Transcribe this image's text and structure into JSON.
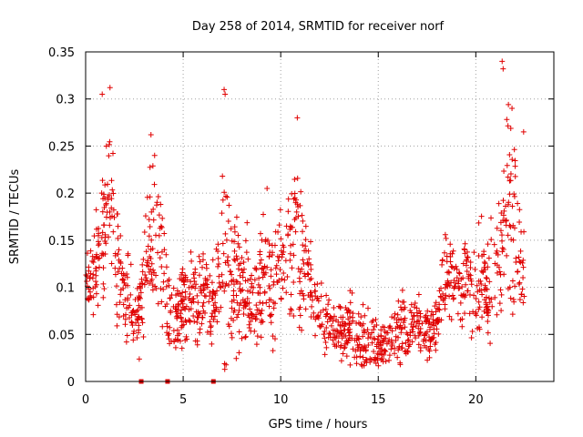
{
  "chart_data": {
    "type": "scatter",
    "title": "Day 258 of 2014, SRMTID for receiver norf",
    "xlabel": "GPS time / hours",
    "ylabel": "SRMTID / TECUs",
    "xlim": [
      0,
      24
    ],
    "ylim": [
      0,
      0.35
    ],
    "xticks": [
      {
        "value": 0,
        "label": "0"
      },
      {
        "value": 5,
        "label": "5"
      },
      {
        "value": 10,
        "label": "10"
      },
      {
        "value": 15,
        "label": "15"
      },
      {
        "value": 20,
        "label": "20"
      }
    ],
    "yticks": [
      {
        "value": 0,
        "label": "0"
      },
      {
        "value": 0.05,
        "label": "0.05"
      },
      {
        "value": 0.1,
        "label": "0.1"
      },
      {
        "value": 0.15,
        "label": "0.15"
      },
      {
        "value": 0.2,
        "label": "0.2"
      },
      {
        "value": 0.25,
        "label": "0.25"
      },
      {
        "value": 0.3,
        "label": "0.3"
      },
      {
        "value": 0.35,
        "label": "0.35"
      }
    ],
    "grid": true,
    "marker": "+",
    "colors": {
      "series": "#e00000",
      "grid": "#a0a0a0",
      "axis": "#000000"
    },
    "series": [
      {
        "name": "SRMTID",
        "envelope": {
          "x": [
            0.0,
            0.3,
            0.6,
            0.9,
            1.2,
            1.5,
            1.8,
            2.1,
            2.4,
            2.7,
            3.0,
            3.3,
            3.6,
            3.9,
            4.2,
            4.5,
            4.8,
            5.1,
            5.4,
            5.7,
            6.0,
            6.3,
            6.6,
            6.9,
            7.2,
            7.5,
            7.8,
            8.1,
            8.4,
            8.7,
            9.0,
            9.3,
            9.6,
            9.9,
            10.2,
            10.5,
            10.8,
            11.1,
            11.4,
            11.7,
            12.0,
            12.3,
            12.6,
            12.9,
            13.2,
            13.5,
            13.8,
            14.1,
            14.4,
            14.7,
            15.0,
            15.3,
            15.6,
            15.9,
            16.2,
            16.5,
            16.8,
            17.1,
            17.4,
            17.7,
            18.0,
            18.3,
            18.6,
            18.9,
            19.2,
            19.5,
            19.8,
            20.1,
            20.4,
            20.7,
            21.0,
            21.3,
            21.6,
            21.9,
            22.2,
            22.5
          ],
          "y_center": [
            0.12,
            0.11,
            0.12,
            0.16,
            0.19,
            0.15,
            0.11,
            0.09,
            0.08,
            0.07,
            0.11,
            0.14,
            0.17,
            0.13,
            0.08,
            0.06,
            0.08,
            0.09,
            0.09,
            0.08,
            0.09,
            0.08,
            0.08,
            0.11,
            0.14,
            0.11,
            0.1,
            0.1,
            0.09,
            0.08,
            0.1,
            0.11,
            0.11,
            0.12,
            0.12,
            0.14,
            0.16,
            0.12,
            0.11,
            0.09,
            0.07,
            0.06,
            0.06,
            0.06,
            0.05,
            0.06,
            0.05,
            0.05,
            0.04,
            0.04,
            0.035,
            0.04,
            0.045,
            0.05,
            0.055,
            0.055,
            0.06,
            0.06,
            0.055,
            0.055,
            0.06,
            0.11,
            0.12,
            0.1,
            0.1,
            0.11,
            0.1,
            0.1,
            0.11,
            0.09,
            0.12,
            0.14,
            0.17,
            0.19,
            0.15,
            0.11
          ],
          "y_spread": [
            0.03,
            0.03,
            0.04,
            0.06,
            0.08,
            0.05,
            0.04,
            0.03,
            0.03,
            0.03,
            0.04,
            0.06,
            0.07,
            0.05,
            0.03,
            0.03,
            0.03,
            0.03,
            0.03,
            0.03,
            0.03,
            0.03,
            0.03,
            0.05,
            0.09,
            0.04,
            0.04,
            0.04,
            0.04,
            0.03,
            0.04,
            0.04,
            0.05,
            0.04,
            0.04,
            0.05,
            0.07,
            0.05,
            0.04,
            0.03,
            0.03,
            0.025,
            0.025,
            0.025,
            0.025,
            0.025,
            0.025,
            0.025,
            0.025,
            0.02,
            0.02,
            0.02,
            0.02,
            0.02,
            0.025,
            0.025,
            0.02,
            0.02,
            0.02,
            0.02,
            0.02,
            0.03,
            0.04,
            0.03,
            0.03,
            0.03,
            0.04,
            0.04,
            0.04,
            0.04,
            0.05,
            0.06,
            0.07,
            0.08,
            0.06,
            0.03
          ],
          "point_count": 1500
        },
        "peaks": [
          {
            "x": 0.85,
            "y": 0.305
          },
          {
            "x": 1.25,
            "y": 0.312
          },
          {
            "x": 3.35,
            "y": 0.262
          },
          {
            "x": 7.1,
            "y": 0.31
          },
          {
            "x": 7.15,
            "y": 0.305
          },
          {
            "x": 9.3,
            "y": 0.205
          },
          {
            "x": 10.85,
            "y": 0.28
          },
          {
            "x": 21.35,
            "y": 0.34
          },
          {
            "x": 21.4,
            "y": 0.332
          },
          {
            "x": 22.45,
            "y": 0.265
          }
        ],
        "zero_markers": [
          2.85,
          4.2,
          6.55
        ]
      }
    ]
  }
}
